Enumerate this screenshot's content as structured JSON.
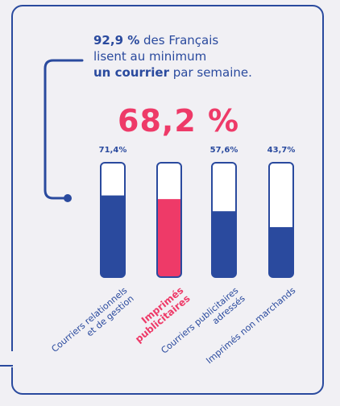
{
  "headline": {
    "stat": "92,9 %",
    "line1_rest": " des Français",
    "line2": "lisent au minimum",
    "line3_bold": "un courrier",
    "line3_rest": " par semaine."
  },
  "highlight_value_text": "68,2 %",
  "colors": {
    "primary": "#2a4a9e",
    "highlight": "#ee3a68",
    "background": "#f1f0f4"
  },
  "chart_data": {
    "type": "bar",
    "ylim": [
      0,
      100
    ],
    "categories": [
      [
        "Courriers relationnels",
        "et de gestion"
      ],
      [
        "Imprimés",
        "publicitaires"
      ],
      [
        "Courriers publicitaires",
        "adressés"
      ],
      [
        "Imprimés non marchands"
      ]
    ],
    "values": [
      71.4,
      68.2,
      57.6,
      43.7
    ],
    "value_labels": [
      "71,4%",
      "",
      "57,6%",
      "43,7%"
    ],
    "highlight_index": 1
  }
}
